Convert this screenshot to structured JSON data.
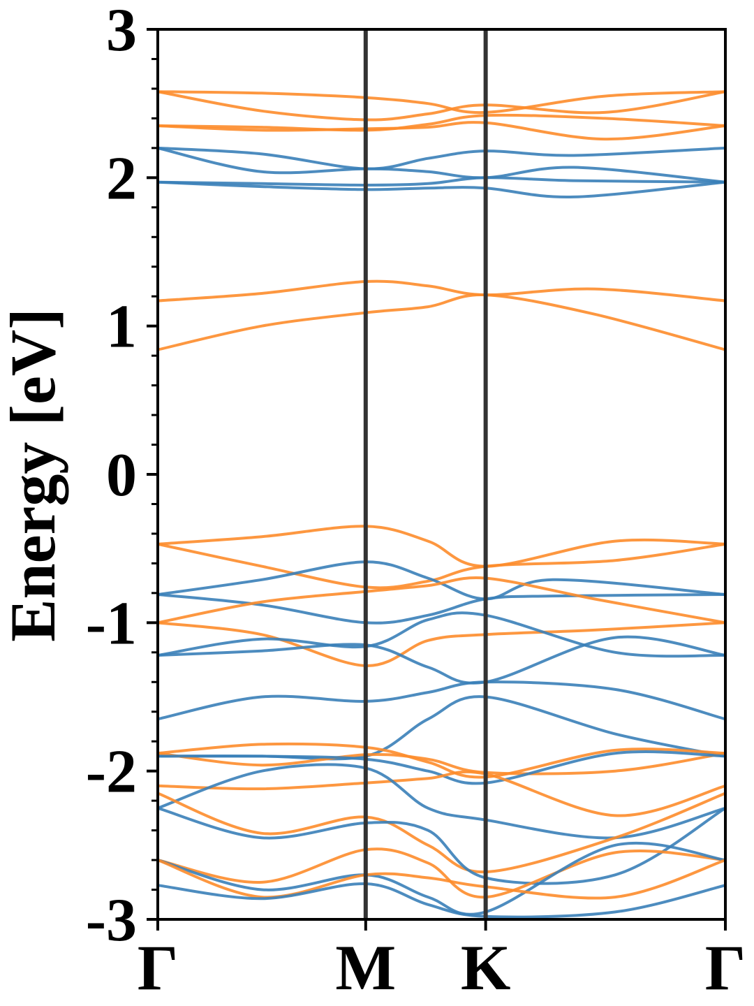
{
  "chart_data": {
    "type": "line",
    "ylabel": "Energy [eV]",
    "xlabel": "",
    "ylim": [
      -3,
      3
    ],
    "xlim": [
      0,
      2.73
    ],
    "y_ticks": [
      {
        "value": 3,
        "label": "3"
      },
      {
        "value": 2,
        "label": "2"
      },
      {
        "value": 1,
        "label": "1"
      },
      {
        "value": 0,
        "label": "0"
      },
      {
        "value": -1,
        "label": "-1"
      },
      {
        "value": -2,
        "label": "-2"
      },
      {
        "value": -3,
        "label": "-3"
      }
    ],
    "x_ticks": [
      {
        "value": 0,
        "label": "Γ"
      },
      {
        "value": 1.0,
        "label": "M"
      },
      {
        "value": 1.577,
        "label": "K"
      },
      {
        "value": 2.73,
        "label": "Γ"
      }
    ],
    "high_symmetry_lines": [
      1.0,
      1.577
    ],
    "colors": {
      "blue": "#3a80b8",
      "orange": "#fd8c2b",
      "vline": "#333333"
    },
    "grid": false,
    "series": [
      {
        "color": "orange",
        "x": [
          0,
          0.5,
          1.0,
          1.3,
          1.577,
          2.15,
          2.73
        ],
        "y": [
          2.58,
          2.57,
          2.54,
          2.5,
          2.44,
          2.55,
          2.58
        ]
      },
      {
        "color": "orange",
        "x": [
          0,
          0.5,
          1.0,
          1.3,
          1.577,
          2.15,
          2.73
        ],
        "y": [
          2.58,
          2.45,
          2.39,
          2.43,
          2.49,
          2.44,
          2.58
        ]
      },
      {
        "color": "orange",
        "x": [
          0,
          0.5,
          1.0,
          1.3,
          1.577,
          2.15,
          2.73
        ],
        "y": [
          2.35,
          2.34,
          2.32,
          2.36,
          2.42,
          2.4,
          2.35
        ]
      },
      {
        "color": "orange",
        "x": [
          0,
          0.5,
          1.0,
          1.3,
          1.577,
          2.15,
          2.73
        ],
        "y": [
          2.35,
          2.32,
          2.33,
          2.34,
          2.37,
          2.26,
          2.35
        ]
      },
      {
        "color": "blue",
        "x": [
          0,
          0.5,
          1.0,
          1.3,
          1.577,
          2.0,
          2.73
        ],
        "y": [
          2.2,
          2.16,
          2.06,
          2.13,
          2.18,
          2.15,
          2.2
        ]
      },
      {
        "color": "blue",
        "x": [
          0,
          0.5,
          1.0,
          1.3,
          1.577,
          2.0,
          2.73
        ],
        "y": [
          2.2,
          2.04,
          2.06,
          2.04,
          2.0,
          2.07,
          1.97
        ]
      },
      {
        "color": "blue",
        "x": [
          0,
          0.5,
          1.0,
          1.3,
          1.577,
          2.0,
          2.73
        ],
        "y": [
          1.97,
          1.96,
          1.95,
          1.96,
          2.0,
          1.98,
          1.97
        ]
      },
      {
        "color": "blue",
        "x": [
          0,
          0.5,
          1.0,
          1.3,
          1.577,
          2.0,
          2.73
        ],
        "y": [
          1.97,
          1.94,
          1.92,
          1.93,
          1.93,
          1.87,
          1.97
        ]
      },
      {
        "color": "orange",
        "x": [
          0,
          0.5,
          1.0,
          1.3,
          1.577,
          2.1,
          2.73
        ],
        "y": [
          1.17,
          1.22,
          1.3,
          1.27,
          1.21,
          1.25,
          1.17
        ]
      },
      {
        "color": "orange",
        "x": [
          0,
          0.5,
          1.0,
          1.3,
          1.577,
          2.1,
          2.73
        ],
        "y": [
          0.84,
          1.0,
          1.09,
          1.13,
          1.21,
          1.08,
          0.84
        ]
      },
      {
        "color": "orange",
        "x": [
          0,
          0.5,
          1.0,
          1.3,
          1.577,
          2.2,
          2.73
        ],
        "y": [
          -0.47,
          -0.42,
          -0.35,
          -0.45,
          -0.62,
          -0.45,
          -0.47
        ]
      },
      {
        "color": "orange",
        "x": [
          0,
          0.5,
          1.0,
          1.3,
          1.577,
          2.2,
          2.73
        ],
        "y": [
          -0.47,
          -0.62,
          -0.76,
          -0.72,
          -0.62,
          -0.58,
          -0.47
        ]
      },
      {
        "color": "blue",
        "x": [
          0,
          0.5,
          1.0,
          1.3,
          1.577,
          1.9,
          2.73
        ],
        "y": [
          -0.81,
          -0.71,
          -0.59,
          -0.7,
          -0.84,
          -0.71,
          -0.81
        ]
      },
      {
        "color": "blue",
        "x": [
          0,
          0.5,
          1.0,
          1.3,
          1.577,
          1.9,
          2.73
        ],
        "y": [
          -0.81,
          -0.88,
          -1.0,
          -0.95,
          -0.84,
          -0.82,
          -0.81
        ]
      },
      {
        "color": "orange",
        "x": [
          0,
          0.5,
          1.0,
          1.3,
          1.577,
          2.1,
          2.73
        ],
        "y": [
          -1.0,
          -0.86,
          -0.79,
          -0.75,
          -0.7,
          -0.84,
          -1.0
        ]
      },
      {
        "color": "orange",
        "x": [
          0,
          0.5,
          1.0,
          1.3,
          1.577,
          2.1,
          2.73
        ],
        "y": [
          -1.0,
          -1.08,
          -1.29,
          -1.12,
          -1.08,
          -1.05,
          -1.0
        ]
      },
      {
        "color": "blue",
        "x": [
          0,
          0.5,
          1.0,
          1.3,
          1.577,
          2.2,
          2.73
        ],
        "y": [
          -1.22,
          -1.11,
          -1.16,
          -0.98,
          -0.95,
          -1.2,
          -1.22
        ]
      },
      {
        "color": "blue",
        "x": [
          0,
          0.5,
          1.0,
          1.3,
          1.577,
          2.2,
          2.73
        ],
        "y": [
          -1.22,
          -1.19,
          -1.15,
          -1.3,
          -1.4,
          -1.1,
          -1.22
        ]
      },
      {
        "color": "blue",
        "x": [
          0,
          0.5,
          1.0,
          1.3,
          1.577,
          2.2,
          2.73
        ],
        "y": [
          -1.65,
          -1.5,
          -1.53,
          -1.47,
          -1.4,
          -1.45,
          -1.65
        ]
      },
      {
        "color": "blue",
        "x": [
          0,
          0.5,
          1.0,
          1.3,
          1.577,
          2.2,
          2.73
        ],
        "y": [
          -1.9,
          -1.9,
          -1.9,
          -1.65,
          -1.5,
          -1.75,
          -1.9
        ]
      },
      {
        "color": "orange",
        "x": [
          0,
          0.5,
          1.0,
          1.3,
          1.577,
          2.2,
          2.73
        ],
        "y": [
          -1.88,
          -1.82,
          -1.84,
          -1.94,
          -2.04,
          -1.86,
          -1.88
        ]
      },
      {
        "color": "orange",
        "x": [
          0,
          0.5,
          1.0,
          1.3,
          1.577,
          2.2,
          2.73
        ],
        "y": [
          -1.88,
          -1.96,
          -1.89,
          -1.92,
          -2.01,
          -2.0,
          -1.88
        ]
      },
      {
        "color": "blue",
        "x": [
          0,
          0.5,
          1.0,
          1.3,
          1.577,
          2.2,
          2.73
        ],
        "y": [
          -1.9,
          -1.9,
          -1.92,
          -2.0,
          -2.08,
          -1.88,
          -1.9
        ]
      },
      {
        "color": "orange",
        "x": [
          0,
          0.5,
          1.0,
          1.3,
          1.577,
          2.2,
          2.73
        ],
        "y": [
          -2.1,
          -2.12,
          -2.08,
          -2.05,
          -2.02,
          -2.3,
          -2.1
        ]
      },
      {
        "color": "blue",
        "x": [
          0,
          0.5,
          1.0,
          1.3,
          1.577,
          2.2,
          2.73
        ],
        "y": [
          -2.25,
          -2.0,
          -1.98,
          -2.25,
          -2.33,
          -2.45,
          -2.25
        ]
      },
      {
        "color": "orange",
        "x": [
          0,
          0.5,
          1.0,
          1.3,
          1.577,
          2.2,
          2.73
        ],
        "y": [
          -2.15,
          -2.42,
          -2.31,
          -2.5,
          -2.68,
          -2.45,
          -2.15
        ]
      },
      {
        "color": "blue",
        "x": [
          0,
          0.5,
          1.0,
          1.3,
          1.577,
          2.2,
          2.73
        ],
        "y": [
          -2.25,
          -2.45,
          -2.35,
          -2.4,
          -2.72,
          -2.7,
          -2.25
        ]
      },
      {
        "color": "orange",
        "x": [
          0,
          0.5,
          1.0,
          1.3,
          1.577,
          2.2,
          2.73
        ],
        "y": [
          -2.6,
          -2.75,
          -2.53,
          -2.62,
          -2.85,
          -2.55,
          -2.6
        ]
      },
      {
        "color": "blue",
        "x": [
          0,
          0.5,
          1.0,
          1.3,
          1.577,
          2.2,
          2.73
        ],
        "y": [
          -2.6,
          -2.8,
          -2.7,
          -2.85,
          -2.95,
          -2.5,
          -2.6
        ]
      },
      {
        "color": "orange",
        "x": [
          0,
          0.5,
          1.0,
          1.3,
          1.577,
          2.2,
          2.73
        ],
        "y": [
          -2.6,
          -2.85,
          -2.7,
          -2.72,
          -2.78,
          -2.85,
          -2.6
        ]
      },
      {
        "color": "blue",
        "x": [
          0,
          0.5,
          1.0,
          1.3,
          1.577,
          2.2,
          2.73
        ],
        "y": [
          -2.77,
          -2.86,
          -2.76,
          -2.9,
          -2.98,
          -2.95,
          -2.77
        ]
      }
    ]
  }
}
